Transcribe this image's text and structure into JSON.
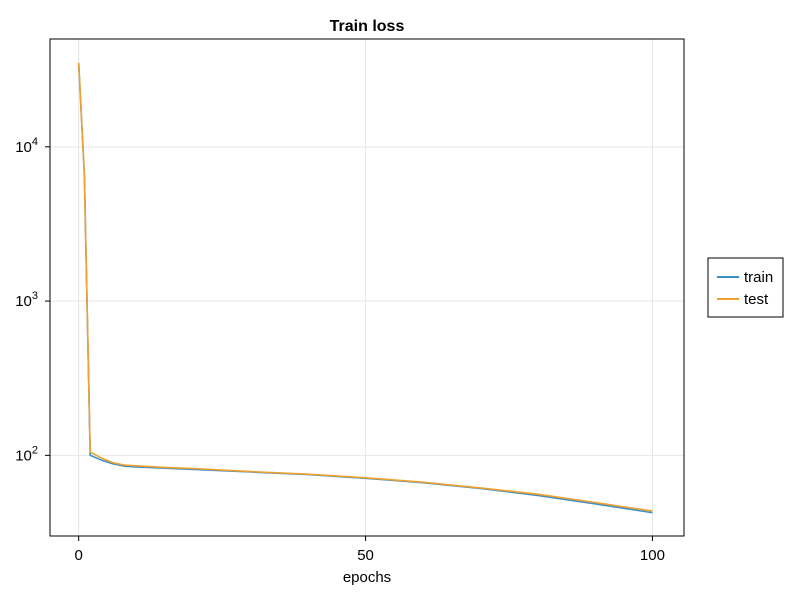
{
  "chart_data": {
    "type": "line",
    "title": "Train loss",
    "xlabel": "epochs",
    "ylabel": "",
    "yscale": "log10",
    "xlim": [
      -5,
      105.5
    ],
    "ylim": [
      30,
      50000
    ],
    "xticks": [
      0,
      50,
      100
    ],
    "xtick_labels": [
      "0",
      "50",
      "100"
    ],
    "yticks": [
      100,
      1000,
      10000
    ],
    "ytick_base": "10",
    "ytick_exponents": [
      "2",
      "3",
      "4"
    ],
    "grid": true,
    "legend_position": "right",
    "series": [
      {
        "name": "train",
        "color": "#3a8fc7",
        "x": [
          0,
          1,
          2,
          4,
          6,
          8,
          10,
          15,
          20,
          30,
          40,
          50,
          60,
          70,
          80,
          90,
          100
        ],
        "y": [
          35000,
          6500,
          100,
          93,
          88,
          85,
          84,
          82.5,
          81,
          78,
          75,
          71,
          66.5,
          61,
          55,
          48.5,
          42.5
        ]
      },
      {
        "name": "test",
        "color": "#f0a02e",
        "x": [
          0,
          1,
          2,
          4,
          6,
          8,
          10,
          15,
          20,
          30,
          40,
          50,
          60,
          70,
          80,
          90,
          100
        ],
        "y": [
          35000,
          6500,
          105,
          96,
          89.5,
          86.5,
          85.5,
          83.5,
          82,
          78.5,
          75.5,
          71.5,
          67,
          61.5,
          56,
          49.5,
          43.5
        ]
      }
    ]
  }
}
